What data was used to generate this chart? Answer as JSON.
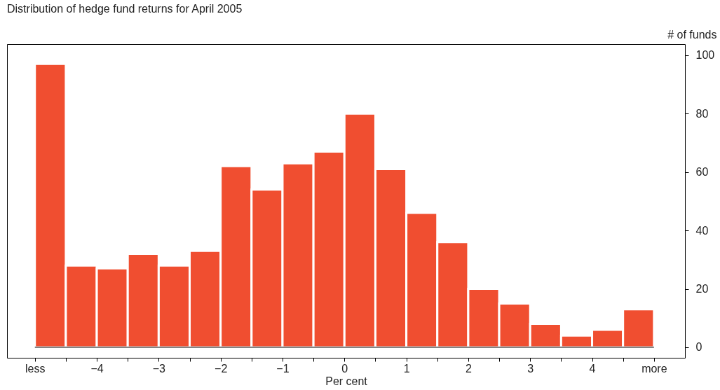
{
  "chart_data": {
    "type": "histogram",
    "title": "Distribution of hedge fund returns for April 2005",
    "xlabel": "Per cent",
    "ylabel": "# of funds",
    "bins": [
      -5,
      -4.5,
      -4,
      -3.5,
      -3,
      -2.5,
      -2,
      -1.5,
      -1,
      -0.5,
      0,
      0.5,
      1,
      1.5,
      2,
      2.5,
      3,
      3.5,
      4,
      4.5,
      5
    ],
    "values": [
      97,
      28,
      27,
      32,
      28,
      33,
      62,
      54,
      63,
      67,
      80,
      61,
      46,
      36,
      20,
      15,
      8,
      4,
      6,
      13
    ],
    "color": "#f04e30",
    "xlim": [
      -5.45,
      5.5
    ],
    "ylim": [
      -3.6,
      103.8
    ],
    "xticks": [
      {
        "value": -5,
        "label": "less"
      },
      {
        "value": -4.5,
        "label": null
      },
      -4,
      {
        "value": -3.5,
        "label": null
      },
      -3,
      {
        "value": -2.5,
        "label": null
      },
      -2,
      {
        "value": -1.5,
        "label": null
      },
      -1,
      {
        "value": -0.5,
        "label": null
      },
      0,
      {
        "value": 0.5,
        "label": null
      },
      1,
      {
        "value": 1.5,
        "label": null
      },
      2,
      {
        "value": 2.5,
        "label": null
      },
      3,
      {
        "value": 3.5,
        "label": null
      },
      4,
      {
        "value": 4.5,
        "label": null
      },
      {
        "value": 5,
        "label": "more"
      }
    ],
    "yticks": [
      0,
      20,
      40,
      60,
      80,
      100
    ],
    "ref_lines": [
      {
        "axis": "y",
        "value": 0,
        "color": "#000000"
      }
    ],
    "grid": false
  }
}
